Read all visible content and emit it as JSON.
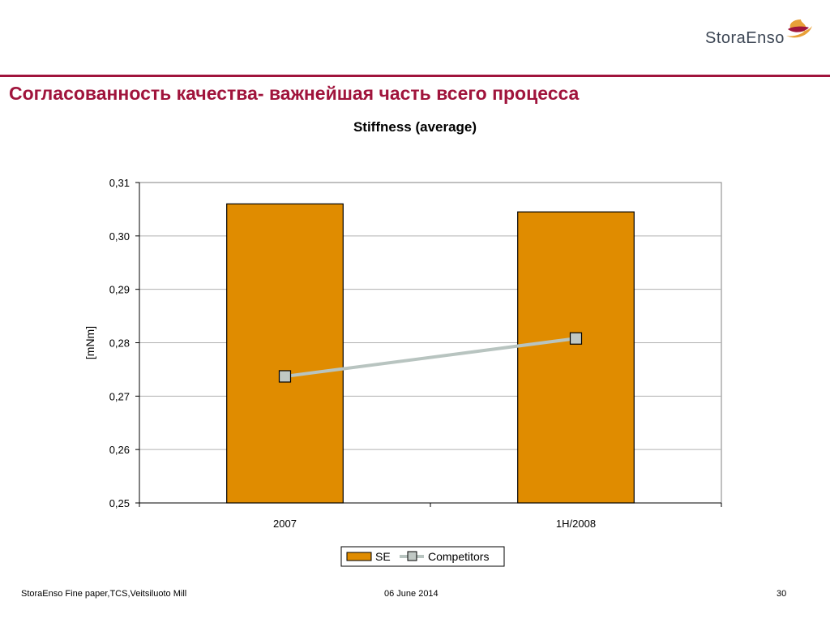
{
  "logo": {
    "text": "StoraEnso"
  },
  "slide": {
    "title": "Согласованность качества- важнейшая часть всего процесса"
  },
  "colors": {
    "accent": "#a0143c",
    "bar": "#e08c00",
    "line": "#b8c4c0",
    "marker": "#c0c8c4"
  },
  "chart_data": {
    "type": "bar",
    "title": "Stiffness (average)",
    "ylabel": "[mNm]",
    "xlabel": "",
    "categories": [
      "2007",
      "1H/2008"
    ],
    "ylim": [
      0.25,
      0.31
    ],
    "ytick_step": 0.01,
    "ytick_labels": [
      "0,25",
      "0,26",
      "0,27",
      "0,28",
      "0,29",
      "0,30",
      "0,31"
    ],
    "grid": true,
    "legend_position": "bottom",
    "series": [
      {
        "name": "SE",
        "kind": "bar",
        "color": "#e08c00",
        "values": [
          0.306,
          0.3045
        ]
      },
      {
        "name": "Competitors",
        "kind": "line",
        "color": "#b8c4c0",
        "marker": "square",
        "values": [
          0.2737,
          0.2808
        ]
      }
    ]
  },
  "footer": {
    "left": "StoraEnso Fine paper,TCS,Veitsiluoto Mill",
    "center": "06 June 2014",
    "page": "30"
  }
}
